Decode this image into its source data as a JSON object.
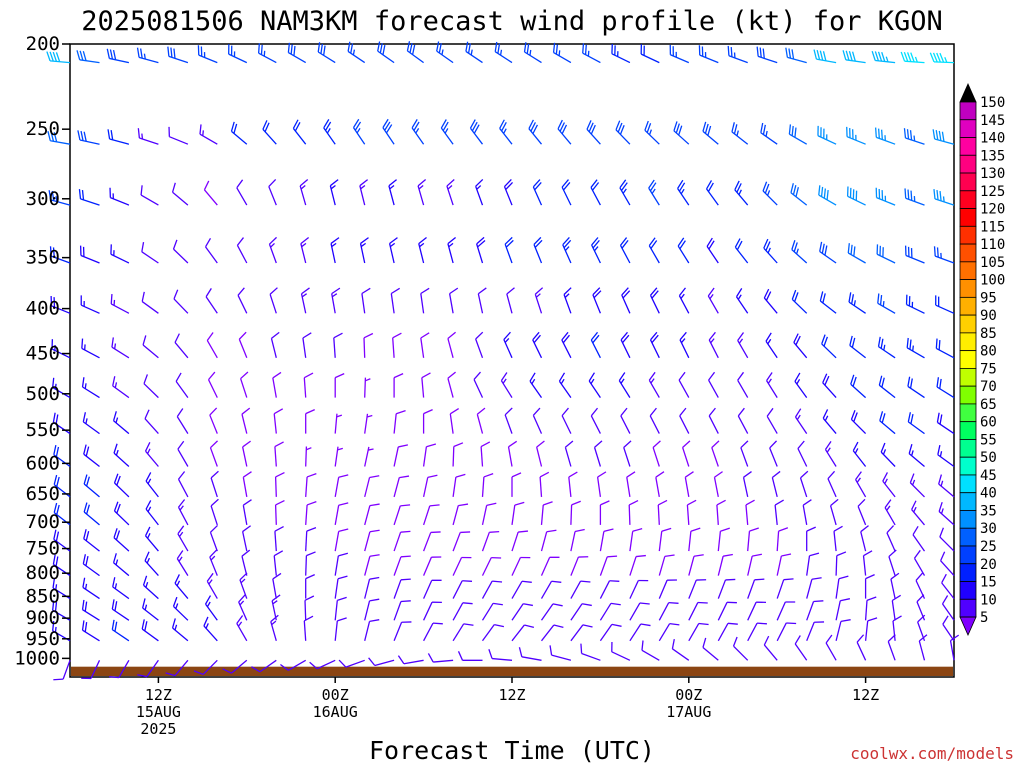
{
  "title": "2025081506 NAM3KM forecast wind profile (kt) for KGON",
  "credit": "coolwx.com/models",
  "chart_data": {
    "type": "wind-barb-profile",
    "xlabel": "Forecast Time (UTC)",
    "x_ticks": [
      {
        "hour": 6,
        "lines": [
          "12Z",
          "15AUG",
          "2025"
        ]
      },
      {
        "hour": 18,
        "lines": [
          "00Z",
          "16AUG"
        ]
      },
      {
        "hour": 30,
        "lines": [
          "12Z"
        ]
      },
      {
        "hour": 42,
        "lines": [
          "00Z",
          "17AUG"
        ]
      },
      {
        "hour": 54,
        "lines": [
          "12Z"
        ]
      }
    ],
    "xlim_hours": [
      0,
      60
    ],
    "y_ticks": [
      200,
      250,
      300,
      350,
      400,
      450,
      500,
      550,
      600,
      650,
      700,
      750,
      800,
      850,
      900,
      950,
      1000
    ],
    "ylim_hpa": [
      200,
      1050
    ],
    "y_scale": "log-pressure",
    "barb_hours": [
      0,
      2,
      4,
      6,
      8,
      10,
      12,
      14,
      16,
      18,
      20,
      22,
      24,
      26,
      28,
      30,
      32,
      34,
      36,
      38,
      40,
      42,
      44,
      46,
      48,
      50,
      52,
      54,
      56,
      58,
      60
    ],
    "levels_hpa": [
      210,
      260,
      305,
      355,
      405,
      455,
      505,
      555,
      605,
      655,
      705,
      755,
      805,
      855,
      905,
      955,
      1005
    ],
    "speed_kt_by_level": [
      [
        41,
        30,
        28,
        27,
        28,
        27,
        26,
        27,
        28,
        28,
        27,
        28,
        29,
        27,
        26,
        26,
        26,
        27,
        27,
        24,
        22,
        25,
        25,
        26,
        28,
        30,
        40,
        42,
        44,
        46,
        45
      ],
      [
        32,
        28,
        20,
        14,
        12,
        13,
        20,
        21,
        22,
        23,
        26,
        28,
        26,
        27,
        28,
        27,
        28,
        29,
        28,
        28,
        27,
        28,
        28,
        26,
        27,
        32,
        36,
        36,
        35,
        34,
        38
      ],
      [
        25,
        22,
        16,
        12,
        10,
        9,
        10,
        12,
        14,
        16,
        14,
        15,
        14,
        14,
        16,
        18,
        20,
        20,
        22,
        24,
        25,
        24,
        22,
        24,
        26,
        32,
        38,
        38,
        36,
        34,
        36
      ],
      [
        20,
        18,
        16,
        12,
        10,
        10,
        11,
        13,
        14,
        16,
        15,
        16,
        16,
        17,
        18,
        20,
        22,
        24,
        23,
        22,
        20,
        20,
        18,
        20,
        24,
        26,
        28,
        30,
        30,
        28,
        26
      ],
      [
        18,
        16,
        14,
        12,
        10,
        10,
        10,
        12,
        13,
        14,
        12,
        10,
        10,
        10,
        10,
        12,
        14,
        16,
        18,
        19,
        18,
        16,
        14,
        16,
        18,
        20,
        22,
        24,
        25,
        24,
        22
      ],
      [
        16,
        15,
        13,
        11,
        10,
        9,
        9,
        10,
        10,
        10,
        9,
        9,
        8,
        9,
        12,
        15,
        18,
        19,
        20,
        19,
        18,
        16,
        14,
        14,
        16,
        18,
        20,
        22,
        24,
        24,
        22
      ],
      [
        16,
        15,
        13,
        11,
        10,
        9,
        8,
        8,
        9,
        8,
        7,
        8,
        8,
        9,
        10,
        14,
        15,
        16,
        16,
        15,
        14,
        12,
        12,
        12,
        14,
        16,
        18,
        20,
        22,
        22,
        20
      ],
      [
        18,
        17,
        15,
        12,
        10,
        9,
        8,
        8,
        8,
        7,
        7,
        8,
        9,
        9,
        9,
        10,
        11,
        12,
        12,
        11,
        10,
        10,
        10,
        11,
        12,
        14,
        16,
        18,
        20,
        20,
        18
      ],
      [
        20,
        19,
        17,
        14,
        11,
        9,
        8,
        8,
        7,
        7,
        7,
        8,
        9,
        9,
        9,
        9,
        9,
        10,
        10,
        10,
        9,
        9,
        9,
        10,
        11,
        12,
        14,
        15,
        16,
        16,
        15
      ],
      [
        20,
        20,
        18,
        15,
        12,
        10,
        9,
        8,
        8,
        8,
        8,
        8,
        8,
        8,
        8,
        8,
        8,
        8,
        9,
        9,
        9,
        9,
        9,
        10,
        10,
        11,
        12,
        13,
        14,
        14,
        14
      ],
      [
        20,
        20,
        18,
        16,
        13,
        11,
        10,
        9,
        9,
        9,
        9,
        8,
        8,
        8,
        8,
        8,
        8,
        8,
        8,
        8,
        8,
        8,
        9,
        9,
        10,
        10,
        11,
        12,
        13,
        13,
        13
      ],
      [
        19,
        19,
        18,
        16,
        14,
        12,
        11,
        10,
        10,
        9,
        9,
        9,
        9,
        8,
        8,
        8,
        8,
        8,
        8,
        8,
        8,
        8,
        8,
        9,
        9,
        10,
        11,
        12,
        12,
        12,
        12
      ],
      [
        18,
        18,
        17,
        16,
        14,
        13,
        12,
        11,
        10,
        10,
        9,
        9,
        9,
        9,
        9,
        9,
        9,
        9,
        9,
        9,
        9,
        9,
        9,
        9,
        9,
        10,
        11,
        12,
        12,
        12,
        12
      ],
      [
        17,
        17,
        17,
        16,
        15,
        14,
        13,
        12,
        11,
        10,
        10,
        10,
        10,
        10,
        10,
        10,
        10,
        10,
        10,
        10,
        10,
        10,
        10,
        10,
        10,
        11,
        12,
        12,
        12,
        12,
        12
      ],
      [
        18,
        18,
        18,
        17,
        16,
        15,
        14,
        13,
        12,
        11,
        11,
        11,
        11,
        11,
        11,
        11,
        11,
        10,
        10,
        10,
        10,
        10,
        10,
        10,
        10,
        11,
        12,
        12,
        12,
        12,
        12
      ],
      [
        16,
        18,
        20,
        19,
        17,
        15,
        14,
        13,
        12,
        12,
        12,
        12,
        12,
        12,
        12,
        12,
        11,
        11,
        11,
        10,
        10,
        10,
        10,
        10,
        10,
        10,
        11,
        11,
        11,
        11,
        11
      ],
      [
        10,
        10,
        10,
        10,
        10,
        10,
        10,
        10,
        10,
        10,
        10,
        10,
        10,
        10,
        10,
        10,
        10,
        10,
        10,
        10,
        10,
        10,
        10,
        10,
        10,
        10,
        10,
        10,
        10,
        10,
        10
      ]
    ],
    "dir_deg_by_level": [
      [
        275,
        278,
        282,
        285,
        288,
        292,
        295,
        298,
        300,
        302,
        304,
        305,
        306,
        305,
        304,
        303,
        302,
        300,
        298,
        296,
        295,
        293,
        292,
        290,
        288,
        285,
        280,
        278,
        276,
        274,
        272
      ],
      [
        280,
        282,
        285,
        288,
        292,
        300,
        310,
        318,
        322,
        325,
        326,
        326,
        325,
        324,
        323,
        322,
        321,
        320,
        318,
        316,
        314,
        312,
        310,
        308,
        305,
        300,
        295,
        292,
        290,
        288,
        285
      ],
      [
        285,
        288,
        292,
        300,
        310,
        320,
        330,
        338,
        344,
        346,
        346,
        345,
        344,
        342,
        340,
        338,
        336,
        334,
        332,
        330,
        328,
        326,
        324,
        320,
        315,
        308,
        300,
        296,
        292,
        290,
        288
      ],
      [
        290,
        292,
        296,
        304,
        314,
        324,
        332,
        340,
        346,
        348,
        348,
        347,
        346,
        345,
        343,
        340,
        338,
        336,
        334,
        332,
        330,
        328,
        326,
        322,
        318,
        312,
        305,
        300,
        296,
        292,
        290
      ],
      [
        292,
        294,
        298,
        306,
        316,
        326,
        334,
        342,
        348,
        350,
        352,
        352,
        352,
        350,
        348,
        345,
        342,
        340,
        338,
        336,
        334,
        332,
        330,
        326,
        320,
        314,
        308,
        304,
        300,
        296,
        294
      ],
      [
        296,
        298,
        302,
        310,
        320,
        330,
        338,
        346,
        352,
        356,
        358,
        356,
        352,
        345,
        340,
        336,
        334,
        333,
        333,
        334,
        334,
        334,
        333,
        330,
        326,
        320,
        314,
        308,
        304,
        300,
        298
      ],
      [
        300,
        302,
        306,
        314,
        324,
        334,
        342,
        350,
        356,
        0,
        2,
        0,
        355,
        345,
        335,
        328,
        325,
        325,
        326,
        328,
        330,
        331,
        331,
        330,
        328,
        324,
        318,
        312,
        308,
        304,
        302
      ],
      [
        304,
        306,
        310,
        318,
        328,
        338,
        346,
        354,
        0,
        5,
        8,
        6,
        0,
        352,
        345,
        340,
        336,
        334,
        333,
        333,
        333,
        333,
        333,
        332,
        330,
        326,
        320,
        315,
        310,
        306,
        304
      ],
      [
        306,
        308,
        312,
        320,
        330,
        340,
        348,
        356,
        2,
        8,
        12,
        12,
        8,
        2,
        356,
        350,
        346,
        344,
        343,
        342,
        342,
        342,
        341,
        340,
        338,
        334,
        328,
        322,
        316,
        310,
        306
      ],
      [
        308,
        310,
        314,
        322,
        332,
        342,
        350,
        358,
        4,
        10,
        14,
        15,
        12,
        8,
        4,
        0,
        356,
        354,
        352,
        351,
        350,
        350,
        349,
        348,
        346,
        342,
        336,
        330,
        322,
        315,
        310
      ],
      [
        308,
        310,
        314,
        322,
        332,
        342,
        350,
        358,
        4,
        10,
        15,
        18,
        18,
        15,
        12,
        8,
        5,
        2,
        0,
        358,
        357,
        356,
        356,
        355,
        354,
        350,
        344,
        338,
        330,
        320,
        312
      ],
      [
        306,
        308,
        312,
        320,
        330,
        340,
        348,
        356,
        3,
        10,
        15,
        19,
        21,
        21,
        20,
        18,
        15,
        12,
        10,
        8,
        7,
        6,
        6,
        5,
        4,
        0,
        354,
        346,
        336,
        325,
        315
      ],
      [
        304,
        306,
        310,
        318,
        328,
        338,
        346,
        354,
        2,
        9,
        15,
        20,
        23,
        25,
        26,
        25,
        24,
        22,
        20,
        18,
        16,
        15,
        14,
        13,
        12,
        8,
        2,
        354,
        342,
        330,
        318
      ],
      [
        302,
        304,
        306,
        312,
        320,
        330,
        340,
        350,
        0,
        8,
        14,
        20,
        24,
        27,
        29,
        30,
        30,
        29,
        27,
        25,
        23,
        22,
        21,
        20,
        19,
        15,
        8,
        360,
        348,
        335,
        322
      ],
      [
        300,
        302,
        304,
        308,
        314,
        324,
        336,
        348,
        358,
        6,
        14,
        20,
        25,
        29,
        32,
        34,
        35,
        34,
        32,
        30,
        28,
        27,
        26,
        25,
        24,
        20,
        12,
        4,
        352,
        338,
        325
      ],
      [
        300,
        302,
        304,
        306,
        310,
        318,
        330,
        344,
        356,
        6,
        14,
        22,
        28,
        32,
        36,
        38,
        38,
        37,
        35,
        33,
        31,
        30,
        29,
        28,
        27,
        22,
        14,
        6,
        354,
        340,
        326
      ],
      [
        200,
        205,
        210,
        215,
        220,
        225,
        230,
        235,
        240,
        245,
        250,
        255,
        260,
        265,
        270,
        275,
        280,
        285,
        290,
        295,
        300,
        305,
        310,
        315,
        320,
        325,
        330,
        335,
        340,
        345,
        350
      ]
    ],
    "colorbar": {
      "labels": [
        150,
        145,
        140,
        135,
        130,
        125,
        120,
        115,
        110,
        105,
        100,
        95,
        90,
        85,
        80,
        75,
        70,
        65,
        60,
        55,
        50,
        45,
        40,
        35,
        30,
        25,
        20,
        15,
        10,
        5
      ],
      "colors": [
        "#c000c0",
        "#e000c0",
        "#ff00a0",
        "#ff0080",
        "#ff0050",
        "#ff0020",
        "#ff0000",
        "#ff3000",
        "#ff5000",
        "#ff7000",
        "#ff9000",
        "#ffb000",
        "#ffd000",
        "#ffee00",
        "#ffff00",
        "#c0ff00",
        "#80ff00",
        "#40ff40",
        "#00ff60",
        "#00ff90",
        "#00ffcc",
        "#00e0ff",
        "#00b8ff",
        "#0090ff",
        "#0060ff",
        "#0040ff",
        "#0020ff",
        "#2000ff",
        "#5000ff",
        "#8000ff"
      ],
      "top_arrow_color": "#000000",
      "bottom_arrow_color": "#8000ff"
    },
    "ground_color": "#8b4513"
  }
}
